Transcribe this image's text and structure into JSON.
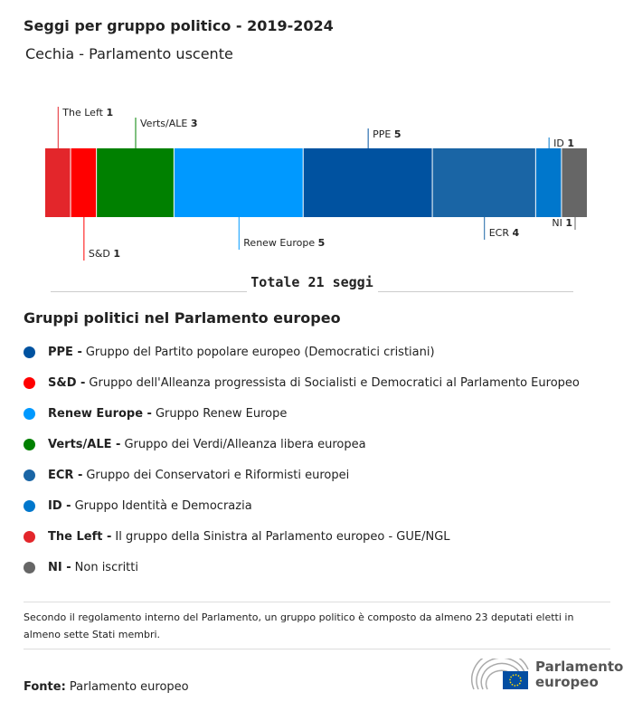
{
  "header": {
    "title": "Seggi per gruppo politico - 2019-2024",
    "subtitle": "Cechia - Parlamento uscente"
  },
  "chart_data": {
    "type": "bar",
    "orientation": "stacked-horizontal",
    "series": [
      {
        "name": "The Left",
        "value": 1,
        "color": "#e3262b"
      },
      {
        "name": "S&D",
        "value": 1,
        "color": "#ff0000"
      },
      {
        "name": "Verts/ALE",
        "value": 3,
        "color": "#008000"
      },
      {
        "name": "Renew Europe",
        "value": 5,
        "color": "#0099ff"
      },
      {
        "name": "PPE",
        "value": 5,
        "color": "#0052a0"
      },
      {
        "name": "ECR",
        "value": 4,
        "color": "#1a65a5"
      },
      {
        "name": "ID",
        "value": 1,
        "color": "#0077cc"
      },
      {
        "name": "NI",
        "value": 1,
        "color": "#666666"
      }
    ],
    "total_label": "Totale 21 seggi"
  },
  "legend": {
    "title": "Gruppi politici nel Parlamento europeo",
    "items": [
      {
        "abbr": "PPE -",
        "desc": "Gruppo del Partito popolare europeo (Democratici cristiani)",
        "color": "#0052a0"
      },
      {
        "abbr": "S&D -",
        "desc": "Gruppo dell'Alleanza progressista di Socialisti e Democratici al Parlamento Europeo",
        "color": "#ff0000"
      },
      {
        "abbr": "Renew Europe -",
        "desc": "Gruppo Renew Europe",
        "color": "#0099ff"
      },
      {
        "abbr": "Verts/ALE -",
        "desc": "Gruppo dei Verdi/Alleanza libera europea",
        "color": "#008000"
      },
      {
        "abbr": "ECR -",
        "desc": "Gruppo dei Conservatori e Riformisti europei",
        "color": "#1a65a5"
      },
      {
        "abbr": "ID -",
        "desc": "Gruppo Identità e Democrazia",
        "color": "#0077cc"
      },
      {
        "abbr": "The Left -",
        "desc": "Il gruppo della Sinistra al Parlamento europeo - GUE/NGL",
        "color": "#e3262b"
      },
      {
        "abbr": "NI -",
        "desc": "Non iscritti",
        "color": "#666666"
      }
    ]
  },
  "note": "Secondo il regolamento interno del Parlamento, un gruppo politico è composto da almeno 23 deputati eletti in almeno sette Stati membri.",
  "source": {
    "label": "Fonte:",
    "value": "Parlamento europeo"
  },
  "logo": {
    "line1": "Parlamento",
    "line2": "europeo"
  }
}
